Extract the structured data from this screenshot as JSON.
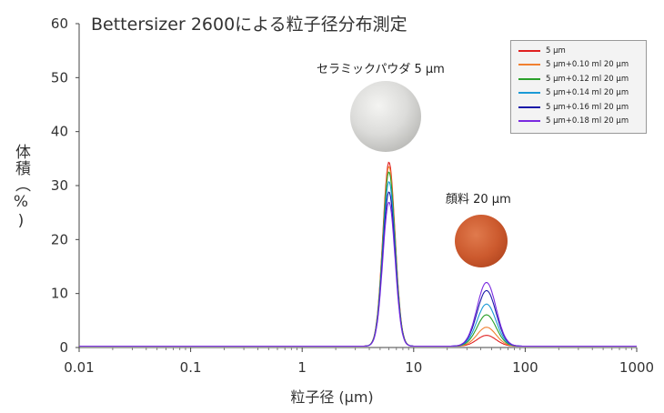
{
  "chart_data": {
    "type": "line",
    "title": "Bettersizer 2600による粒子径分布測定",
    "xlabel": "粒子径 (μm)",
    "ylabel": "体積（%)",
    "xscale": "log",
    "xlim": [
      0.01,
      1000
    ],
    "ylim": [
      0,
      60
    ],
    "x_ticks": [
      "0.01",
      "0.1",
      "1",
      "10",
      "100",
      "1000"
    ],
    "y_ticks": [
      "0",
      "10",
      "20",
      "30",
      "40",
      "50",
      "60"
    ],
    "legend_position": "top-right",
    "annotations": [
      {
        "label": "セラミックパウダ 5 μm"
      },
      {
        "label": "顔料 20 μm"
      }
    ],
    "series": [
      {
        "name": "5 μm",
        "color": "#e02020",
        "peak1": {
          "x": 6.0,
          "y": 34.1
        },
        "peak2": {
          "x": 45,
          "y": 2.0
        }
      },
      {
        "name": "5 μm+0.10 ml 20 μm",
        "color": "#f08030",
        "peak1": {
          "x": 6.0,
          "y": 33.3
        },
        "peak2": {
          "x": 45,
          "y": 3.5
        }
      },
      {
        "name": "5 μm+0.12 ml 20 μm",
        "color": "#2aa02a",
        "peak1": {
          "x": 6.0,
          "y": 32.3
        },
        "peak2": {
          "x": 45,
          "y": 5.8
        }
      },
      {
        "name": "5 μm+0.14 ml 20 μm",
        "color": "#1a9ad6",
        "peak1": {
          "x": 6.0,
          "y": 30.5
        },
        "peak2": {
          "x": 45,
          "y": 7.8
        }
      },
      {
        "name": "5 μm+0.16 ml 20 μm",
        "color": "#1a1aa8",
        "peak1": {
          "x": 6.0,
          "y": 28.6
        },
        "peak2": {
          "x": 45,
          "y": 10.3
        }
      },
      {
        "name": "5 μm+0.18 ml 20 μm",
        "color": "#7a2ae0",
        "peak1": {
          "x": 6.0,
          "y": 26.7
        },
        "peak2": {
          "x": 45,
          "y": 11.8
        }
      }
    ]
  }
}
